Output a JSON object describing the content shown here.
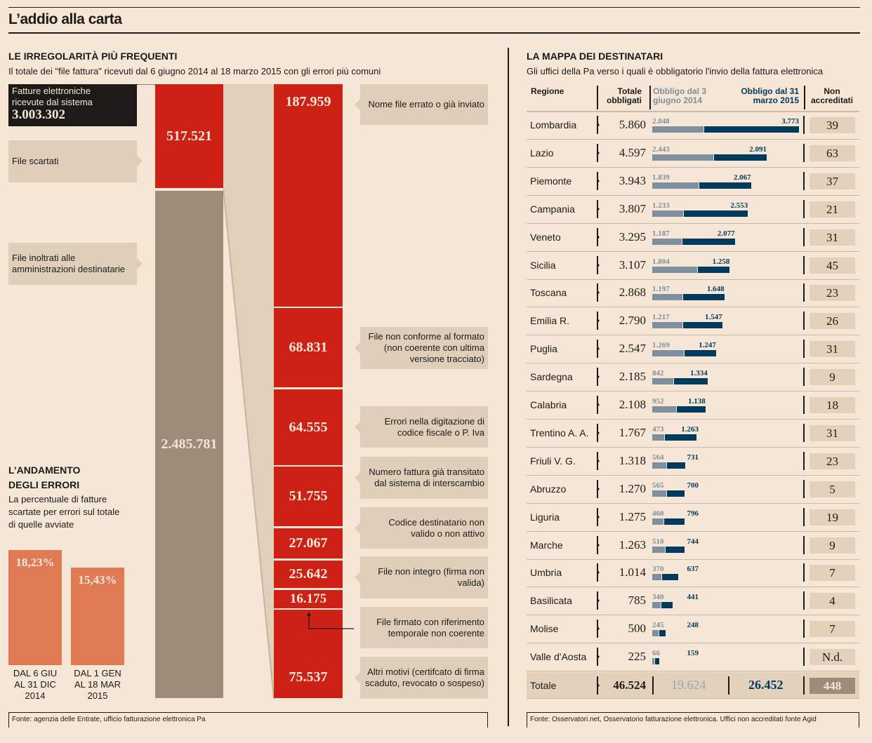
{
  "title": "L’addio alla carta",
  "left": {
    "heading": "LE IRREGOLARITÀ PIÙ FREQUENTI",
    "subtitle": "Il totale dei \"file fattura\" ricevuti dal 6 giugno 2014 al 18 marzo 2015 con gli errori più comuni",
    "received_label": "Fatture elettroniche ricevute dal sistema",
    "received_value": "3.003.302",
    "discarded_label": "File scartati",
    "discarded_value": "517.521",
    "forwarded_label": "File inoltrati alle amministrazioni destinatarie",
    "forwarded_value": "2.485.781",
    "errors": [
      {
        "value": "187.959",
        "label": "Nome file errato o già inviato"
      },
      {
        "value": "68.831",
        "label": "File non conforme al formato (non coerente con ultima versione tracciato)"
      },
      {
        "value": "64.555",
        "label": "Errori nella digitazione di codice fiscale o P. Iva"
      },
      {
        "value": "51.755",
        "label": "Numero fattura già transitato dal sistema di interscambio"
      },
      {
        "value": "27.067",
        "label": "Codice destinatario non valido o non attivo"
      },
      {
        "value": "25.642",
        "label": "File non integro (firma non valida)"
      },
      {
        "value": "16.175",
        "label": "File firmato con riferimento temporale non coerente"
      },
      {
        "value": "75.537",
        "label": "Altri motivi (certifcato di firma scaduto, revocato o sospeso)"
      }
    ],
    "trend_heading": "L’ANDAMENTO DEGLI ERRORI",
    "trend_subtitle": "La percentuale di fatture scartate per errori sul totale di quelle avviate",
    "source": "Fonte: agenzia delle Entrate, ufficio fatturazione elettronica Pa"
  },
  "chart_data": [
    {
      "type": "bar",
      "title": "L’andamento degli errori",
      "categories": [
        "DAL 6 GIU AL 31 DIC 2014",
        "DAL 1 GEN AL 18 MAR 2015"
      ],
      "values": [
        18.23,
        15.43
      ],
      "labels": [
        "18,23%",
        "15,43%"
      ],
      "ylim": [
        0,
        20
      ]
    },
    {
      "type": "bar",
      "title": "La mappa dei destinatari",
      "stacked": true,
      "series_names": [
        "Obbligo dal 3 giugno 2014",
        "Obbligo dal 31 marzo 2015"
      ]
    }
  ],
  "right": {
    "heading": "LA MAPPA DEI DESTINATARI",
    "subtitle": "Gli uffici della Pa verso i quali è obbligatorio l'invio della fattura elettronica",
    "col_region": "Regione",
    "col_total": "Totale obbligati",
    "col_2014": "Obbligo dal 3 giugno 2014",
    "col_2015": "Obbligo dal 31 marzo 2015",
    "col_na": "Non accreditati",
    "rows": [
      {
        "region": "Lombardia",
        "total": "5.860",
        "a": 2048,
        "b": 3773,
        "a_label": "2.048",
        "b_label": "3.773",
        "na": "39"
      },
      {
        "region": "Lazio",
        "total": "4.597",
        "a": 2443,
        "b": 2091,
        "a_label": "2.443",
        "b_label": "2.091",
        "na": "63"
      },
      {
        "region": "Piemonte",
        "total": "3.943",
        "a": 1839,
        "b": 2067,
        "a_label": "1.839",
        "b_label": "2.067",
        "na": "37"
      },
      {
        "region": "Campania",
        "total": "3.807",
        "a": 1233,
        "b": 2553,
        "a_label": "1.233",
        "b_label": "2.553",
        "na": "21"
      },
      {
        "region": "Veneto",
        "total": "3.295",
        "a": 1187,
        "b": 2077,
        "a_label": "1.187",
        "b_label": "2.077",
        "na": "31"
      },
      {
        "region": "Sicilia",
        "total": "3.107",
        "a": 1804,
        "b": 1258,
        "a_label": "1.804",
        "b_label": "1.258",
        "na": "45"
      },
      {
        "region": "Toscana",
        "total": "2.868",
        "a": 1197,
        "b": 1648,
        "a_label": "1.197",
        "b_label": "1.648",
        "na": "23"
      },
      {
        "region": "Emilia R.",
        "total": "2.790",
        "a": 1217,
        "b": 1547,
        "a_label": "1.217",
        "b_label": "1.547",
        "na": "26"
      },
      {
        "region": "Puglia",
        "total": "2.547",
        "a": 1269,
        "b": 1247,
        "a_label": "1.269",
        "b_label": "1.247",
        "na": "31"
      },
      {
        "region": "Sardegna",
        "total": "2.185",
        "a": 842,
        "b": 1334,
        "a_label": "842",
        "b_label": "1.334",
        "na": "9"
      },
      {
        "region": "Calabria",
        "total": "2.108",
        "a": 952,
        "b": 1138,
        "a_label": "952",
        "b_label": "1.138",
        "na": "18"
      },
      {
        "region": "Trentino A. A.",
        "total": "1.767",
        "a": 473,
        "b": 1263,
        "a_label": "473",
        "b_label": "1.263",
        "na": "31"
      },
      {
        "region": "Friuli V. G.",
        "total": "1.318",
        "a": 564,
        "b": 731,
        "a_label": "564",
        "b_label": "731",
        "na": "23"
      },
      {
        "region": "Abruzzo",
        "total": "1.270",
        "a": 565,
        "b": 700,
        "a_label": "565",
        "b_label": "700",
        "na": "5"
      },
      {
        "region": "Liguria",
        "total": "1.275",
        "a": 460,
        "b": 796,
        "a_label": "460",
        "b_label": "796",
        "na": "19"
      },
      {
        "region": "Marche",
        "total": "1.263",
        "a": 510,
        "b": 744,
        "a_label": "510",
        "b_label": "744",
        "na": "9"
      },
      {
        "region": "Umbria",
        "total": "1.014",
        "a": 370,
        "b": 637,
        "a_label": "370",
        "b_label": "637",
        "na": "7"
      },
      {
        "region": "Basilicata",
        "total": "785",
        "a": 340,
        "b": 441,
        "a_label": "340",
        "b_label": "441",
        "na": "4"
      },
      {
        "region": "Molise",
        "total": "500",
        "a": 245,
        "b": 248,
        "a_label": "245",
        "b_label": "248",
        "na": "7"
      },
      {
        "region": "Valle d'Aosta",
        "total": "225",
        "a": 66,
        "b": 159,
        "a_label": "66",
        "b_label": "159",
        "na": "N.d."
      }
    ],
    "totals": {
      "label": "Totale",
      "total": "46.524",
      "a": "19.624",
      "b": "26.452",
      "na": "448"
    },
    "source": "Fonte: Osservatori.net, Osservatorio fatturazione elettronica. Uffici non accreditati fonte Agid"
  },
  "colors": {
    "red": "#cc2114",
    "taupe": "#9e8b7a",
    "navy": "#003a5c",
    "grey": "#7f8fa0",
    "orange": "#e07a55",
    "background": "#f5e6d6"
  }
}
